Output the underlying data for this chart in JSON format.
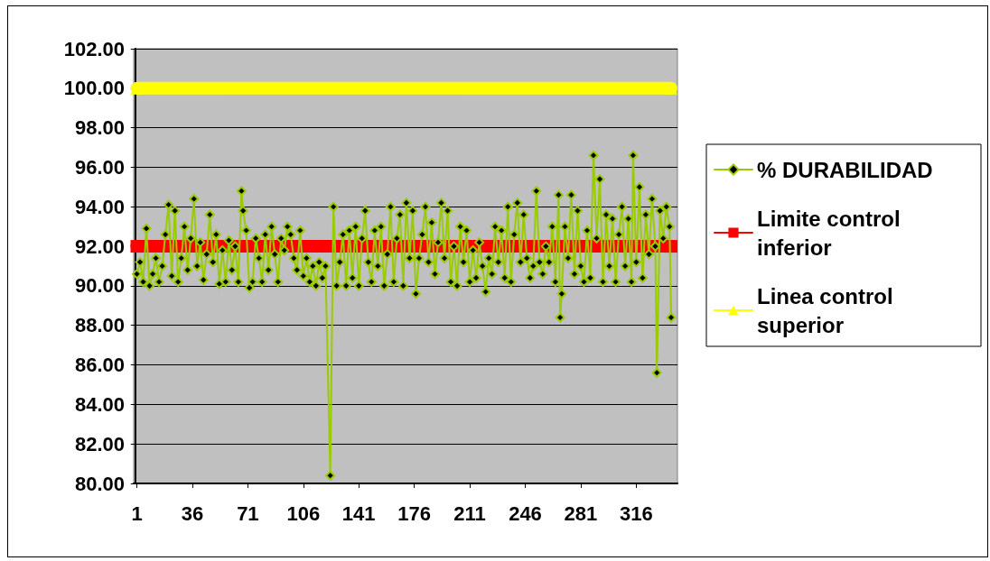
{
  "chart_data": {
    "type": "line",
    "xlim": [
      -1,
      342
    ],
    "xticks": [
      1,
      36,
      71,
      106,
      141,
      176,
      211,
      246,
      281,
      316
    ],
    "ylim": [
      80,
      102
    ],
    "yticks": [
      {
        "value": 80,
        "label": "80.00"
      },
      {
        "value": 82,
        "label": "82.00"
      },
      {
        "value": 84,
        "label": "84.00"
      },
      {
        "value": 86,
        "label": "86.00"
      },
      {
        "value": 88,
        "label": "88.00"
      },
      {
        "value": 90,
        "label": "90.00"
      },
      {
        "value": 92,
        "label": "92.00"
      },
      {
        "value": 94,
        "label": "94.00"
      },
      {
        "value": 96,
        "label": "96.00"
      },
      {
        "value": 98,
        "label": "98.00"
      },
      {
        "value": 100,
        "label": "100.00"
      },
      {
        "value": 102,
        "label": "102.00"
      }
    ],
    "grid": "y",
    "legend": "right",
    "series": [
      {
        "name": "% DURABILIDAD",
        "color": "#99cc00",
        "marker": "diamond",
        "x": [
          1,
          3,
          5,
          7,
          9,
          11,
          13,
          15,
          17,
          19,
          21,
          23,
          25,
          27,
          29,
          31,
          33,
          35,
          37,
          39,
          41,
          43,
          45,
          47,
          49,
          51,
          53,
          55,
          57,
          59,
          61,
          63,
          65,
          67,
          68,
          70,
          72,
          74,
          76,
          78,
          80,
          82,
          84,
          86,
          88,
          90,
          92,
          94,
          96,
          98,
          100,
          102,
          104,
          106,
          108,
          110,
          112,
          114,
          116,
          118,
          120,
          123,
          125,
          127,
          129,
          131,
          133,
          135,
          137,
          139,
          141,
          143,
          145,
          147,
          149,
          151,
          153,
          155,
          157,
          159,
          161,
          163,
          165,
          167,
          169,
          171,
          173,
          175,
          177,
          179,
          181,
          183,
          185,
          187,
          189,
          191,
          193,
          195,
          197,
          199,
          201,
          203,
          205,
          207,
          209,
          211,
          213,
          215,
          217,
          219,
          221,
          223,
          225,
          227,
          229,
          231,
          233,
          235,
          237,
          239,
          241,
          243,
          245,
          247,
          249,
          251,
          253,
          255,
          257,
          259,
          261,
          263,
          265,
          267,
          268,
          269,
          271,
          273,
          275,
          277,
          279,
          281,
          283,
          285,
          287,
          289,
          291,
          293,
          295,
          297,
          299,
          301,
          303,
          305,
          307,
          309,
          311,
          313,
          314,
          316,
          318,
          320,
          322,
          324,
          326,
          328,
          329,
          331,
          333,
          335,
          337,
          338
        ],
        "values": [
          90.6,
          91.2,
          90.2,
          92.9,
          90.0,
          90.6,
          91.4,
          90.2,
          91.0,
          92.6,
          94.1,
          90.5,
          93.8,
          90.2,
          91.4,
          93.0,
          90.8,
          92.4,
          94.4,
          91.0,
          92.2,
          90.3,
          91.6,
          93.6,
          91.2,
          92.6,
          90.1,
          91.8,
          90.2,
          92.3,
          90.8,
          92.0,
          90.2,
          94.8,
          93.8,
          92.8,
          89.9,
          90.2,
          92.4,
          91.4,
          90.2,
          92.6,
          90.8,
          93.0,
          91.6,
          90.2,
          92.4,
          91.8,
          93.0,
          92.6,
          91.4,
          90.8,
          92.8,
          90.5,
          91.4,
          90.2,
          91.0,
          90.0,
          91.2,
          90.4,
          91.0,
          80.4,
          94.0,
          90.0,
          91.2,
          92.6,
          90.0,
          92.8,
          90.4,
          93.0,
          90.0,
          92.4,
          93.8,
          91.2,
          90.2,
          92.8,
          91.0,
          93.0,
          90.0,
          91.6,
          94.0,
          90.2,
          92.4,
          93.6,
          90.0,
          94.2,
          91.4,
          93.8,
          89.6,
          91.4,
          92.6,
          94.0,
          91.2,
          93.2,
          90.6,
          92.2,
          94.2,
          91.4,
          93.8,
          90.2,
          92.0,
          90.0,
          93.0,
          91.2,
          92.8,
          90.2,
          91.8,
          90.4,
          92.2,
          91.0,
          89.7,
          91.4,
          90.6,
          93.0,
          91.2,
          92.8,
          90.4,
          94.0,
          90.2,
          92.6,
          94.2,
          91.2,
          93.6,
          91.4,
          90.4,
          91.0,
          94.8,
          91.2,
          90.6,
          92.0,
          91.2,
          93.0,
          90.2,
          94.6,
          88.4,
          89.6,
          93.0,
          91.4,
          94.6,
          90.6,
          93.8,
          91.0,
          90.2,
          92.8,
          90.4,
          96.6,
          92.4,
          95.4,
          90.2,
          93.6,
          91.0,
          93.4,
          90.2,
          92.6,
          94.0,
          91.0,
          93.4,
          90.2,
          96.6,
          91.2,
          95.0,
          90.4,
          93.6,
          91.6,
          94.4,
          92.0,
          85.6,
          93.8,
          92.4,
          94.0,
          93.0,
          88.4
        ]
      },
      {
        "name": "Limite control inferior",
        "color": "#ff0000",
        "marker": "square",
        "x": [
          1,
          338
        ],
        "values": [
          92,
          92
        ]
      },
      {
        "name": "Linea control superior",
        "color": "#ffff00",
        "marker": "triangle",
        "x": [
          1,
          338
        ],
        "values": [
          100,
          100
        ]
      }
    ]
  }
}
